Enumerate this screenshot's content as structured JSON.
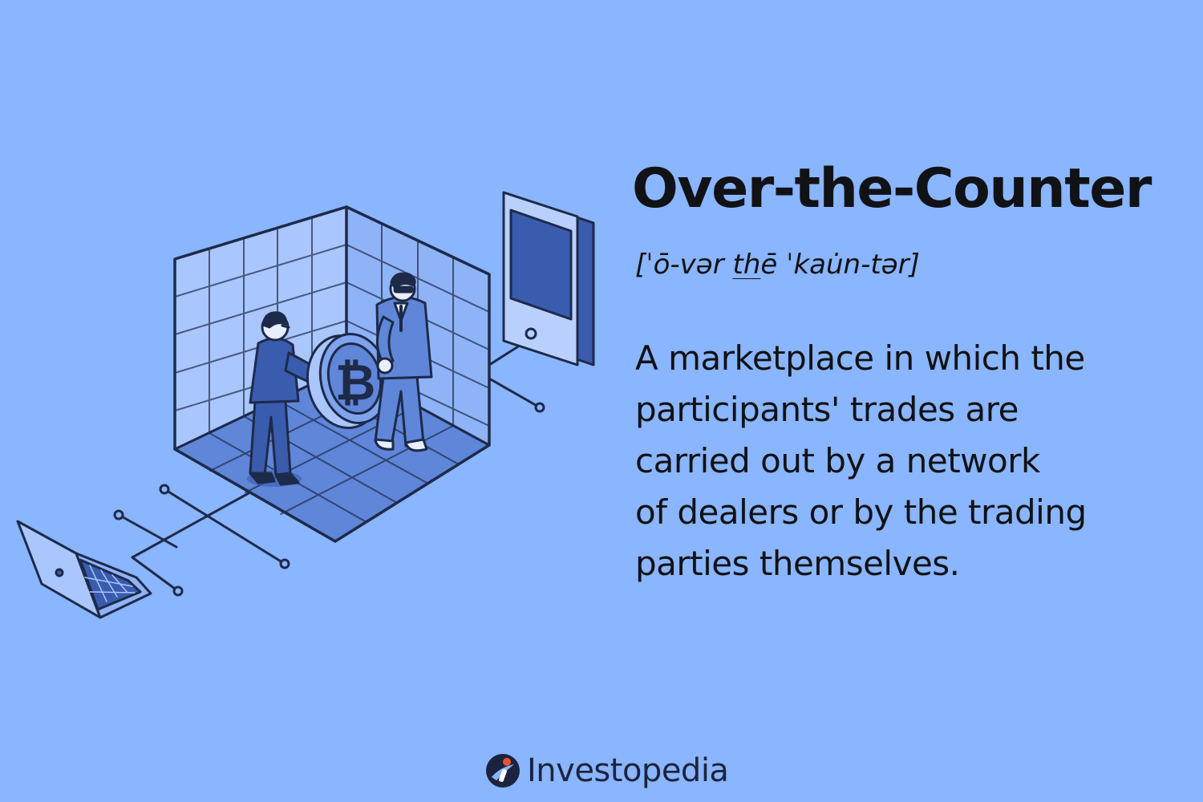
{
  "title": "Over-the-Counter",
  "pronunciation": {
    "before": "[ˈō-vər ",
    "underlined": "th",
    "after": "ē ˈkau̇n-tər]"
  },
  "definition": {
    "lines": [
      "A marketplace in which the",
      "participants' trades are",
      "carried out by a network",
      "of dealers or by the trading",
      "parties themselves."
    ]
  },
  "brand": {
    "name": "Investopedia"
  },
  "illustration": {
    "coin_symbol": "₿",
    "colors": {
      "background": "#8ab5ff",
      "outline": "#1e2a4a",
      "fill_dark": "#3a5cae",
      "fill_mid": "#5f86d8",
      "fill_light": "#a9c6ff",
      "brand_accent": "#e8542f"
    }
  }
}
